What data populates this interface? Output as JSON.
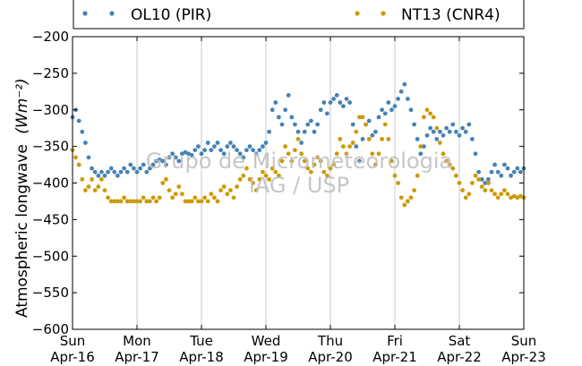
{
  "chart_data": {
    "type": "scatter",
    "ylabel": "Atmospheric longwave",
    "ylabel_units": "(Wm⁻²)",
    "ylim": [
      -600,
      -200
    ],
    "yticks": [
      -200,
      -250,
      -300,
      -350,
      -400,
      -450,
      -500,
      -550,
      -600
    ],
    "xticks": [
      {
        "top": "Sun",
        "bottom": "Apr-16"
      },
      {
        "top": "Mon",
        "bottom": "Apr-17"
      },
      {
        "top": "Tue",
        "bottom": "Apr-18"
      },
      {
        "top": "Wed",
        "bottom": "Apr-19"
      },
      {
        "top": "Thu",
        "bottom": "Apr-20"
      },
      {
        "top": "Fri",
        "bottom": "Apr-21"
      },
      {
        "top": "Sat",
        "bottom": "Apr-22"
      },
      {
        "top": "Sun",
        "bottom": "Apr-23"
      }
    ],
    "x_unit": "days from Apr-16 00:00",
    "xlim": [
      0,
      7
    ],
    "grid": true,
    "legend_position": "top-outside",
    "watermark": [
      "Grupo de Micrometeorologia",
      "IAG / USP"
    ],
    "series": [
      {
        "name": "OL10 (PIR)",
        "color": "#4682b4",
        "points": [
          [
            0.0,
            -310
          ],
          [
            0.05,
            -300
          ],
          [
            0.1,
            -315
          ],
          [
            0.15,
            -330
          ],
          [
            0.2,
            -345
          ],
          [
            0.25,
            -365
          ],
          [
            0.3,
            -380
          ],
          [
            0.35,
            -385
          ],
          [
            0.4,
            -390
          ],
          [
            0.45,
            -385
          ],
          [
            0.5,
            -390
          ],
          [
            0.55,
            -385
          ],
          [
            0.6,
            -380
          ],
          [
            0.65,
            -385
          ],
          [
            0.7,
            -390
          ],
          [
            0.75,
            -385
          ],
          [
            0.8,
            -380
          ],
          [
            0.85,
            -385
          ],
          [
            0.9,
            -375
          ],
          [
            0.95,
            -380
          ],
          [
            1.0,
            -385
          ],
          [
            1.05,
            -380
          ],
          [
            1.1,
            -375
          ],
          [
            1.15,
            -385
          ],
          [
            1.2,
            -380
          ],
          [
            1.25,
            -375
          ],
          [
            1.3,
            -370
          ],
          [
            1.35,
            -368
          ],
          [
            1.4,
            -370
          ],
          [
            1.45,
            -375
          ],
          [
            1.5,
            -365
          ],
          [
            1.55,
            -360
          ],
          [
            1.6,
            -365
          ],
          [
            1.65,
            -370
          ],
          [
            1.7,
            -360
          ],
          [
            1.75,
            -358
          ],
          [
            1.8,
            -360
          ],
          [
            1.85,
            -362
          ],
          [
            1.9,
            -355
          ],
          [
            1.95,
            -350
          ],
          [
            2.0,
            -360
          ],
          [
            2.05,
            -355
          ],
          [
            2.1,
            -345
          ],
          [
            2.15,
            -355
          ],
          [
            2.2,
            -350
          ],
          [
            2.25,
            -345
          ],
          [
            2.3,
            -355
          ],
          [
            2.35,
            -360
          ],
          [
            2.4,
            -350
          ],
          [
            2.45,
            -345
          ],
          [
            2.5,
            -350
          ],
          [
            2.55,
            -355
          ],
          [
            2.6,
            -360
          ],
          [
            2.65,
            -365
          ],
          [
            2.7,
            -355
          ],
          [
            2.75,
            -350
          ],
          [
            2.8,
            -355
          ],
          [
            2.85,
            -360
          ],
          [
            2.9,
            -355
          ],
          [
            2.95,
            -350
          ],
          [
            3.0,
            -345
          ],
          [
            3.05,
            -330
          ],
          [
            3.1,
            -300
          ],
          [
            3.15,
            -290
          ],
          [
            3.2,
            -310
          ],
          [
            3.25,
            -320
          ],
          [
            3.3,
            -300
          ],
          [
            3.35,
            -280
          ],
          [
            3.4,
            -310
          ],
          [
            3.45,
            -320
          ],
          [
            3.5,
            -330
          ],
          [
            3.55,
            -345
          ],
          [
            3.6,
            -330
          ],
          [
            3.65,
            -320
          ],
          [
            3.7,
            -315
          ],
          [
            3.75,
            -330
          ],
          [
            3.8,
            -320
          ],
          [
            3.85,
            -300
          ],
          [
            3.9,
            -290
          ],
          [
            3.95,
            -305
          ],
          [
            4.0,
            -290
          ],
          [
            4.05,
            -285
          ],
          [
            4.1,
            -280
          ],
          [
            4.15,
            -290
          ],
          [
            4.2,
            -295
          ],
          [
            4.25,
            -285
          ],
          [
            4.3,
            -290
          ],
          [
            4.35,
            -320
          ],
          [
            4.4,
            -350
          ],
          [
            4.45,
            -370
          ],
          [
            4.5,
            -340
          ],
          [
            4.55,
            -320
          ],
          [
            4.6,
            -315
          ],
          [
            4.65,
            -335
          ],
          [
            4.7,
            -330
          ],
          [
            4.75,
            -310
          ],
          [
            4.8,
            -300
          ],
          [
            4.85,
            -305
          ],
          [
            4.9,
            -290
          ],
          [
            4.95,
            -300
          ],
          [
            5.0,
            -295
          ],
          [
            5.05,
            -285
          ],
          [
            5.1,
            -275
          ],
          [
            5.15,
            -265
          ],
          [
            5.2,
            -285
          ],
          [
            5.25,
            -300
          ],
          [
            5.3,
            -320
          ],
          [
            5.35,
            -340
          ],
          [
            5.4,
            -360
          ],
          [
            5.45,
            -350
          ],
          [
            5.5,
            -335
          ],
          [
            5.55,
            -325
          ],
          [
            5.6,
            -330
          ],
          [
            5.65,
            -340
          ],
          [
            5.7,
            -330
          ],
          [
            5.75,
            -335
          ],
          [
            5.8,
            -325
          ],
          [
            5.85,
            -330
          ],
          [
            5.9,
            -320
          ],
          [
            5.95,
            -330
          ],
          [
            6.0,
            -335
          ],
          [
            6.05,
            -325
          ],
          [
            6.1,
            -330
          ],
          [
            6.15,
            -320
          ],
          [
            6.2,
            -340
          ],
          [
            6.25,
            -360
          ],
          [
            6.3,
            -385
          ],
          [
            6.35,
            -395
          ],
          [
            6.4,
            -400
          ],
          [
            6.45,
            -395
          ],
          [
            6.5,
            -385
          ],
          [
            6.55,
            -375
          ],
          [
            6.6,
            -385
          ],
          [
            6.65,
            -390
          ],
          [
            6.7,
            -375
          ],
          [
            6.75,
            -380
          ],
          [
            6.8,
            -390
          ],
          [
            6.85,
            -385
          ],
          [
            6.9,
            -380
          ],
          [
            6.95,
            -385
          ],
          [
            7.0,
            -380
          ]
        ]
      },
      {
        "name": "NT13 (CNR4)",
        "color": "#cc9a06",
        "points": [
          [
            0.0,
            -355
          ],
          [
            0.05,
            -365
          ],
          [
            0.1,
            -375
          ],
          [
            0.15,
            -395
          ],
          [
            0.2,
            -410
          ],
          [
            0.25,
            -405
          ],
          [
            0.3,
            -395
          ],
          [
            0.35,
            -410
          ],
          [
            0.4,
            -405
          ],
          [
            0.45,
            -395
          ],
          [
            0.5,
            -410
          ],
          [
            0.55,
            -420
          ],
          [
            0.6,
            -425
          ],
          [
            0.65,
            -425
          ],
          [
            0.7,
            -425
          ],
          [
            0.75,
            -425
          ],
          [
            0.8,
            -420
          ],
          [
            0.85,
            -425
          ],
          [
            0.9,
            -425
          ],
          [
            0.95,
            -425
          ],
          [
            1.0,
            -425
          ],
          [
            1.05,
            -425
          ],
          [
            1.1,
            -420
          ],
          [
            1.15,
            -425
          ],
          [
            1.2,
            -425
          ],
          [
            1.25,
            -420
          ],
          [
            1.3,
            -425
          ],
          [
            1.35,
            -420
          ],
          [
            1.4,
            -400
          ],
          [
            1.45,
            -395
          ],
          [
            1.5,
            -410
          ],
          [
            1.55,
            -420
          ],
          [
            1.6,
            -415
          ],
          [
            1.65,
            -405
          ],
          [
            1.7,
            -415
          ],
          [
            1.75,
            -425
          ],
          [
            1.8,
            -425
          ],
          [
            1.85,
            -425
          ],
          [
            1.9,
            -420
          ],
          [
            1.95,
            -425
          ],
          [
            2.0,
            -425
          ],
          [
            2.05,
            -420
          ],
          [
            2.1,
            -425
          ],
          [
            2.15,
            -415
          ],
          [
            2.2,
            -420
          ],
          [
            2.25,
            -425
          ],
          [
            2.3,
            -410
          ],
          [
            2.35,
            -405
          ],
          [
            2.4,
            -415
          ],
          [
            2.45,
            -410
          ],
          [
            2.5,
            -420
          ],
          [
            2.55,
            -405
          ],
          [
            2.6,
            -395
          ],
          [
            2.65,
            -390
          ],
          [
            2.7,
            -380
          ],
          [
            2.75,
            -395
          ],
          [
            2.8,
            -400
          ],
          [
            2.85,
            -410
          ],
          [
            2.9,
            -395
          ],
          [
            2.95,
            -385
          ],
          [
            3.0,
            -390
          ],
          [
            3.05,
            -395
          ],
          [
            3.1,
            -380
          ],
          [
            3.15,
            -385
          ],
          [
            3.2,
            -390
          ],
          [
            3.25,
            -370
          ],
          [
            3.3,
            -350
          ],
          [
            3.35,
            -360
          ],
          [
            3.4,
            -370
          ],
          [
            3.45,
            -355
          ],
          [
            3.5,
            -340
          ],
          [
            3.55,
            -360
          ],
          [
            3.6,
            -370
          ],
          [
            3.65,
            -380
          ],
          [
            3.7,
            -385
          ],
          [
            3.75,
            -375
          ],
          [
            3.8,
            -365
          ],
          [
            3.85,
            -370
          ],
          [
            3.9,
            -385
          ],
          [
            3.95,
            -390
          ],
          [
            4.0,
            -380
          ],
          [
            4.05,
            -375
          ],
          [
            4.1,
            -360
          ],
          [
            4.15,
            -340
          ],
          [
            4.2,
            -350
          ],
          [
            4.25,
            -360
          ],
          [
            4.3,
            -350
          ],
          [
            4.35,
            -345
          ],
          [
            4.4,
            -330
          ],
          [
            4.45,
            -310
          ],
          [
            4.5,
            -310
          ],
          [
            4.55,
            -320
          ],
          [
            4.6,
            -340
          ],
          [
            4.65,
            -360
          ],
          [
            4.7,
            -375
          ],
          [
            4.75,
            -360
          ],
          [
            4.8,
            -340
          ],
          [
            4.85,
            -320
          ],
          [
            4.9,
            -340
          ],
          [
            4.95,
            -370
          ],
          [
            5.0,
            -390
          ],
          [
            5.05,
            -400
          ],
          [
            5.1,
            -420
          ],
          [
            5.15,
            -430
          ],
          [
            5.2,
            -425
          ],
          [
            5.25,
            -420
          ],
          [
            5.3,
            -410
          ],
          [
            5.35,
            -390
          ],
          [
            5.4,
            -350
          ],
          [
            5.45,
            -310
          ],
          [
            5.5,
            -300
          ],
          [
            5.55,
            -305
          ],
          [
            5.6,
            -310
          ],
          [
            5.65,
            -325
          ],
          [
            5.7,
            -345
          ],
          [
            5.75,
            -360
          ],
          [
            5.8,
            -370
          ],
          [
            5.85,
            -375
          ],
          [
            5.9,
            -380
          ],
          [
            5.95,
            -390
          ],
          [
            6.0,
            -400
          ],
          [
            6.05,
            -410
          ],
          [
            6.1,
            -420
          ],
          [
            6.15,
            -415
          ],
          [
            6.2,
            -400
          ],
          [
            6.25,
            -390
          ],
          [
            6.3,
            -395
          ],
          [
            6.35,
            -405
          ],
          [
            6.4,
            -410
          ],
          [
            6.45,
            -400
          ],
          [
            6.5,
            -410
          ],
          [
            6.55,
            -415
          ],
          [
            6.6,
            -420
          ],
          [
            6.65,
            -415
          ],
          [
            6.7,
            -410
          ],
          [
            6.75,
            -415
          ],
          [
            6.8,
            -420
          ],
          [
            6.85,
            -418
          ],
          [
            6.9,
            -420
          ],
          [
            6.95,
            -418
          ],
          [
            7.0,
            -420
          ]
        ]
      }
    ]
  }
}
